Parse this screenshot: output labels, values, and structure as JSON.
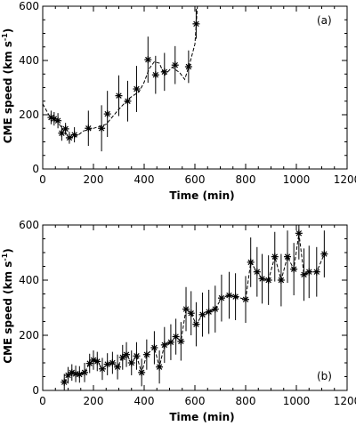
{
  "chart_data": [
    {
      "type": "scatter",
      "tag": "(a)",
      "xlabel": "Time (min)",
      "ylabel": "CME speed (km s",
      "ylabel_sup": "-1",
      "ylabel_end": ")",
      "xlim": [
        0,
        1200
      ],
      "ylim": [
        0,
        600
      ],
      "xticks": [
        0,
        200,
        400,
        600,
        800,
        1000,
        1200
      ],
      "yticks": [
        0,
        200,
        400,
        600
      ],
      "grid": false,
      "legend": "none",
      "fit_curve": [
        [
          0,
          240
        ],
        [
          30,
          190
        ],
        [
          60,
          172
        ],
        [
          80,
          145
        ],
        [
          100,
          122
        ],
        [
          120,
          115
        ],
        [
          140,
          125
        ],
        [
          160,
          140
        ],
        [
          200,
          150
        ],
        [
          250,
          165
        ],
        [
          300,
          220
        ],
        [
          340,
          260
        ],
        [
          380,
          285
        ],
        [
          400,
          320
        ],
        [
          420,
          370
        ],
        [
          440,
          395
        ],
        [
          460,
          390
        ],
        [
          480,
          345
        ],
        [
          510,
          375
        ],
        [
          540,
          355
        ],
        [
          560,
          330
        ],
        [
          580,
          390
        ],
        [
          600,
          460
        ],
        [
          610,
          600
        ]
      ],
      "series": [
        {
          "marker": "asterisk",
          "x": [
            33,
            45,
            60,
            75,
            90,
            105,
            125,
            180,
            232,
            255,
            300,
            335,
            370,
            415,
            445,
            480,
            522,
            575,
            605
          ],
          "y": [
            190,
            185,
            178,
            132,
            148,
            115,
            126,
            150,
            150,
            203,
            270,
            250,
            295,
            403,
            347,
            358,
            383,
            377,
            535
          ],
          "err": [
            25,
            25,
            28,
            28,
            22,
            22,
            28,
            65,
            85,
            85,
            75,
            75,
            85,
            85,
            70,
            70,
            70,
            60,
            55
          ]
        }
      ]
    },
    {
      "type": "scatter",
      "tag": "(b)",
      "xlabel": "Time (min)",
      "ylabel": "CME speed (km s",
      "ylabel_sup": "-1",
      "ylabel_end": ")",
      "xlim": [
        0,
        1200
      ],
      "ylim": [
        0,
        600
      ],
      "xticks": [
        0,
        200,
        400,
        600,
        800,
        1000,
        1200
      ],
      "yticks": [
        0,
        200,
        400,
        600
      ],
      "grid": false,
      "legend": "none",
      "series": [
        {
          "marker": "asterisk",
          "x": [
            85,
            100,
            115,
            130,
            145,
            165,
            185,
            200,
            215,
            235,
            255,
            275,
            295,
            315,
            330,
            350,
            370,
            390,
            410,
            440,
            460,
            480,
            505,
            525,
            545,
            565,
            585,
            605,
            630,
            655,
            680,
            705,
            735,
            760,
            800,
            820,
            845,
            865,
            890,
            915,
            940,
            965,
            990,
            1010,
            1030,
            1050,
            1080,
            1110
          ],
          "y": [
            30,
            55,
            65,
            60,
            58,
            65,
            98,
            110,
            105,
            78,
            95,
            100,
            85,
            120,
            130,
            100,
            125,
            65,
            130,
            155,
            85,
            165,
            175,
            195,
            178,
            295,
            280,
            240,
            275,
            285,
            295,
            335,
            345,
            340,
            330,
            465,
            430,
            405,
            400,
            485,
            400,
            485,
            440,
            570,
            420,
            430,
            430,
            495
          ]
        }
      ],
      "err": [
        30,
        30,
        30,
        30,
        30,
        35,
        35,
        35,
        35,
        40,
        40,
        40,
        45,
        45,
        45,
        45,
        50,
        50,
        55,
        60,
        60,
        65,
        65,
        65,
        70,
        80,
        80,
        80,
        80,
        80,
        85,
        85,
        85,
        85,
        85,
        90,
        90,
        90,
        90,
        90,
        95,
        95,
        95,
        95,
        95,
        95,
        90,
        85
      ]
    }
  ]
}
